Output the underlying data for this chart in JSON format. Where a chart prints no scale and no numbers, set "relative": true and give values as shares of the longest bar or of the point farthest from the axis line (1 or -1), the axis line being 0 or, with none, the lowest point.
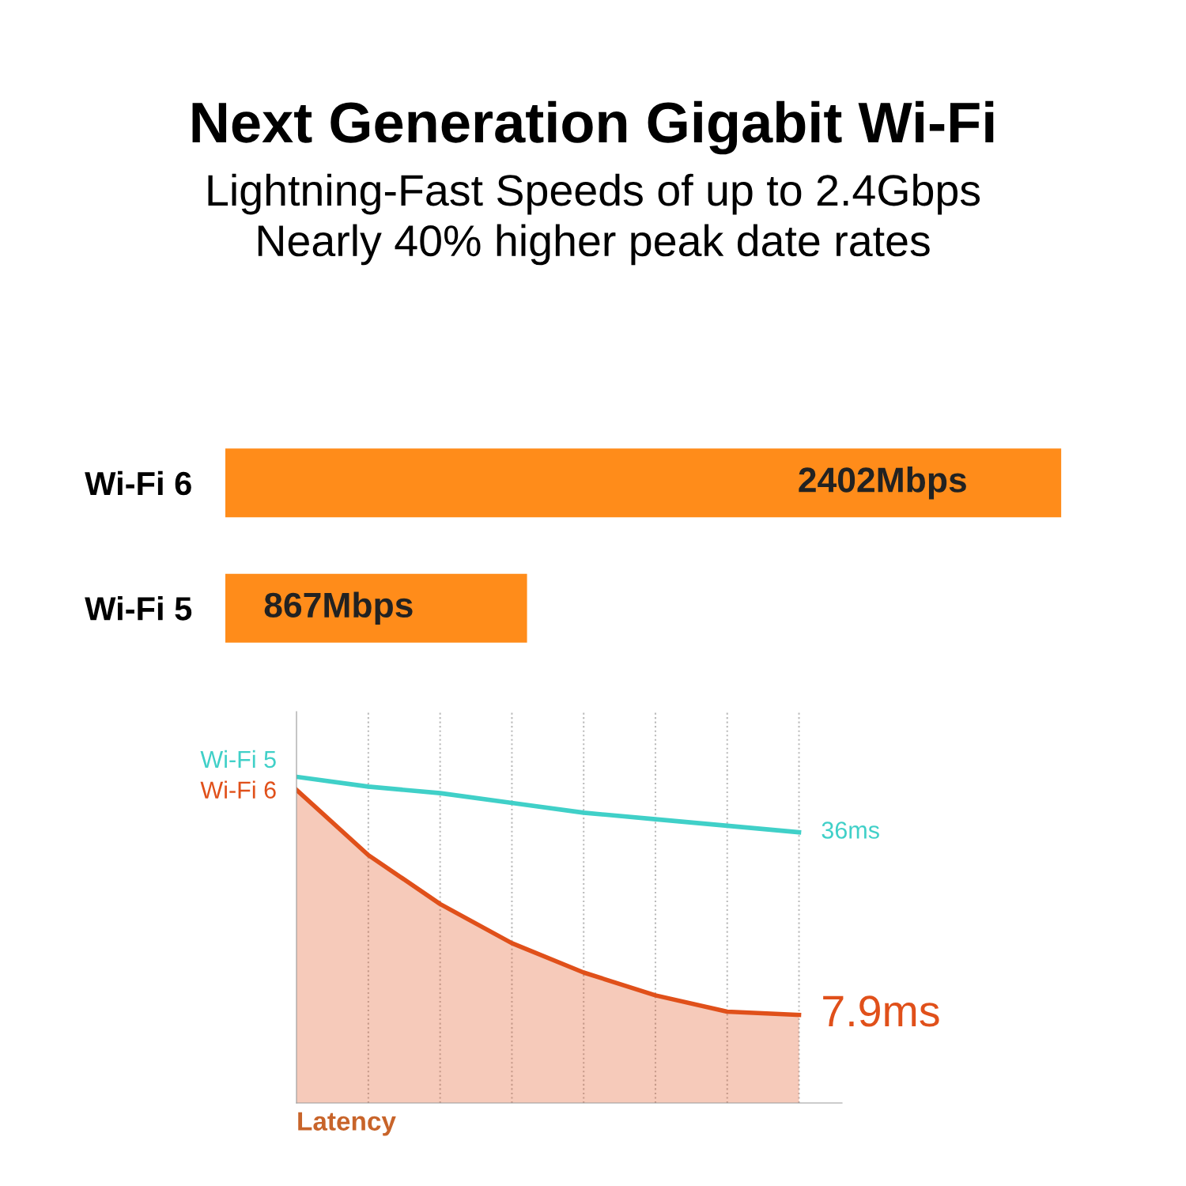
{
  "chart_data": [
    {
      "type": "bar",
      "title": "Next Generation Gigabit Wi-Fi",
      "subtitle": "Lightning-Fast Speeds of up to 2.4Gbps\nNearly 40% higher peak date rates",
      "orientation": "horizontal",
      "categories": [
        "Wi-Fi 6",
        "Wi-Fi 5"
      ],
      "values": [
        2402,
        867
      ],
      "color": "#ff8c1a",
      "value_labels": [
        "2402Mbps",
        "867Mbps"
      ],
      "tick_labels": "y",
      "grid": false
    },
    {
      "type": "line",
      "relative": true,
      "xlabel": "Latency",
      "annotations": [
        "36ms",
        "7.9ms"
      ],
      "categories": [
        null,
        null,
        null,
        null,
        null,
        null,
        null,
        null
      ],
      "grid": "x",
      "legend": false,
      "marker": "none",
      "line_style": "solid",
      "series": [
        {
          "name": "Wi-Fi 5",
          "color": "#40d0c8",
          "values": [
            1,
            0.97,
            0.95,
            0.92,
            0.89,
            0.87,
            0.85,
            0.83
          ]
        },
        {
          "name": "Wi-Fi 6",
          "type": "area",
          "color": "#e0501a",
          "values": [
            0.96,
            0.76,
            0.61,
            0.49,
            0.4,
            0.33,
            0.28,
            0.27
          ]
        }
      ]
    }
  ]
}
